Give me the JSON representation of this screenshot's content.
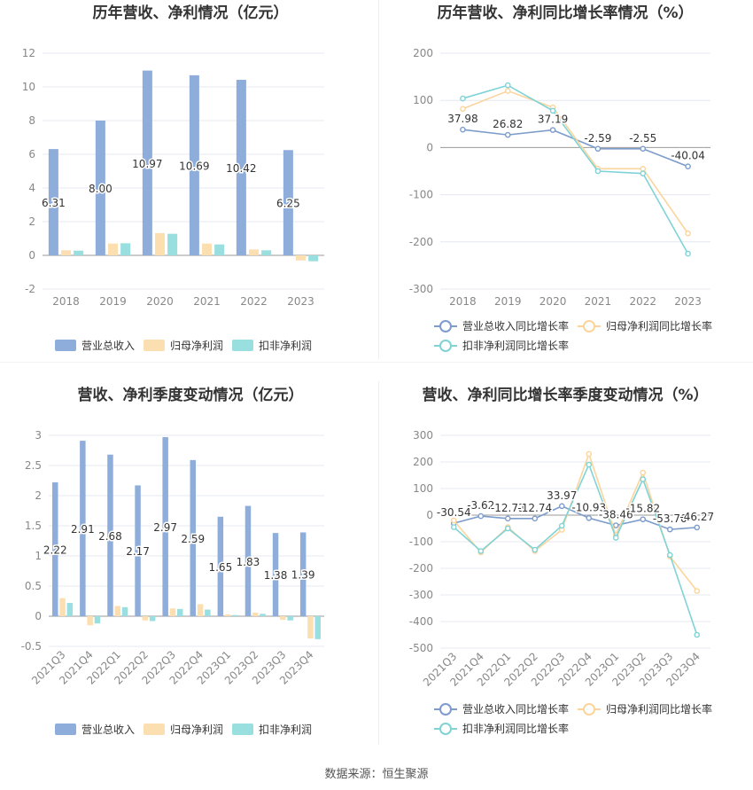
{
  "source": {
    "label": "数据来源：",
    "value": "恒生聚源"
  },
  "chart_data": [
    {
      "type": "bar",
      "title": "历年营收、净利情况（亿元）",
      "categories": [
        "2018",
        "2019",
        "2020",
        "2021",
        "2022",
        "2023"
      ],
      "ylim": [
        -2,
        12
      ],
      "yticks": [
        "-2",
        "0",
        "2",
        "4",
        "6",
        "8",
        "10",
        "12"
      ],
      "grid": true,
      "legend_position": "bottom",
      "series": [
        {
          "name": "营业总收入",
          "color": "#8eaddb",
          "values": [
            6.31,
            8.0,
            10.97,
            10.69,
            10.42,
            6.25
          ],
          "labels": [
            "6.31",
            "8.00",
            "10.97",
            "10.69",
            "10.42",
            "6.25"
          ]
        },
        {
          "name": "归母净利润",
          "color": "#fbdfb0",
          "values": [
            0.3,
            0.7,
            1.32,
            0.7,
            0.35,
            -0.3
          ]
        },
        {
          "name": "扣非净利润",
          "color": "#9adfe0",
          "values": [
            0.28,
            0.72,
            1.28,
            0.65,
            0.3,
            -0.35
          ]
        }
      ]
    },
    {
      "type": "line",
      "title": "历年营收、净利同比增长率情况（%）",
      "categories": [
        "2018",
        "2019",
        "2020",
        "2021",
        "2022",
        "2023"
      ],
      "ylim": [
        -300,
        200
      ],
      "yticks": [
        "-300",
        "-200",
        "-100",
        "0",
        "100",
        "200"
      ],
      "grid": true,
      "legend_position": "bottom",
      "series": [
        {
          "name": "营业总收入同比增长率",
          "color": "#7c9ccc",
          "values": [
            37.98,
            26.82,
            37.19,
            -2.59,
            -2.55,
            -40.04
          ],
          "labels": [
            "37.98",
            "26.82",
            "37.19",
            "-2.59",
            "-2.55",
            "-40.04"
          ]
        },
        {
          "name": "归母净利润同比增长率",
          "color": "#fbd49c",
          "values": [
            82,
            120,
            85,
            -45,
            -45,
            -182
          ]
        },
        {
          "name": "扣非净利润同比增长率",
          "color": "#7fd3d6",
          "values": [
            104,
            132,
            78,
            -50,
            -55,
            -225
          ]
        }
      ]
    },
    {
      "type": "bar",
      "title": "营收、净利季度变动情况（亿元）",
      "categories": [
        "2021Q3",
        "2021Q4",
        "2022Q1",
        "2022Q2",
        "2022Q3",
        "2022Q4",
        "2023Q1",
        "2023Q2",
        "2023Q3",
        "2023Q4"
      ],
      "ylim": [
        -0.5,
        3
      ],
      "yticks": [
        "-0.5",
        "0",
        "0.5",
        "1",
        "1.5",
        "2",
        "2.5",
        "3"
      ],
      "grid": true,
      "legend_position": "bottom",
      "series": [
        {
          "name": "营业总收入",
          "color": "#8eaddb",
          "values": [
            2.22,
            2.91,
            2.68,
            2.17,
            2.97,
            2.59,
            1.65,
            1.83,
            1.38,
            1.39
          ],
          "labels": [
            "2.22",
            "2.91",
            "2.68",
            "2.17",
            "2.97",
            "2.59",
            "1.65",
            "1.83",
            "1.38",
            "1.39"
          ]
        },
        {
          "name": "归母净利润",
          "color": "#fbdfb0",
          "values": [
            0.3,
            -0.15,
            0.17,
            -0.07,
            0.13,
            0.2,
            0.03,
            0.06,
            -0.06,
            -0.37
          ]
        },
        {
          "name": "扣非净利润",
          "color": "#9adfe0",
          "values": [
            0.22,
            -0.12,
            0.15,
            -0.08,
            0.12,
            0.11,
            0.02,
            0.04,
            -0.07,
            -0.38
          ]
        }
      ]
    },
    {
      "type": "line",
      "title": "营收、净利同比增长率季度变动情况（%）",
      "categories": [
        "2021Q3",
        "2021Q4",
        "2022Q1",
        "2022Q2",
        "2022Q3",
        "2022Q4",
        "2023Q1",
        "2023Q2",
        "2023Q3",
        "2023Q4"
      ],
      "ylim": [
        -500,
        300
      ],
      "yticks": [
        "-500",
        "-400",
        "-300",
        "-200",
        "-100",
        "0",
        "100",
        "200",
        "300"
      ],
      "grid": true,
      "legend_position": "bottom",
      "series": [
        {
          "name": "营业总收入同比增长率",
          "color": "#7c9ccc",
          "values": [
            -30.54,
            -3.62,
            -12.73,
            -12.74,
            33.97,
            -10.93,
            -38.46,
            -15.82,
            -53.7,
            -46.27
          ],
          "labels": [
            "-30.54",
            "-3.62",
            "-12.73",
            "-12.74",
            "33.97",
            "-10.93",
            "-38.46",
            "-15.82",
            "-53.70",
            "-46.27"
          ]
        },
        {
          "name": "归母净利润同比增长率",
          "color": "#fbd49c",
          "values": [
            -20,
            -140,
            -45,
            -135,
            -55,
            230,
            -75,
            160,
            -155,
            -285
          ]
        },
        {
          "name": "扣非净利润同比增长率",
          "color": "#7fd3d6",
          "values": [
            -45,
            -135,
            -50,
            -130,
            -40,
            190,
            -85,
            135,
            -150,
            -450
          ]
        }
      ]
    }
  ]
}
